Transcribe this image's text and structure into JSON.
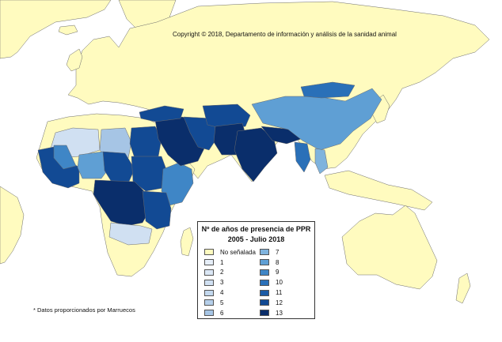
{
  "map": {
    "copyright": "Copyright © 2018, Departamento de información y análisis de la sanidad animal",
    "footnote": "* Datos proporcionados por Marruecos",
    "ocean_color": "#ffffff",
    "no_data_color": "#fffbbf",
    "border_color": "#6b6b6b"
  },
  "legend": {
    "title_line1": "Nº de años de presencia de PPR",
    "title_line2": "2005 - Julio 2018",
    "items": [
      {
        "label": "No señalada",
        "color": "#fffbbf"
      },
      {
        "label": "1",
        "color": "#e6eef8"
      },
      {
        "label": "2",
        "color": "#dbe7f5"
      },
      {
        "label": "3",
        "color": "#d0e0f2"
      },
      {
        "label": "4",
        "color": "#c3d8ee"
      },
      {
        "label": "5",
        "color": "#b5cfea"
      },
      {
        "label": "6",
        "color": "#a6c5e5"
      },
      {
        "label": "7",
        "color": "#7fb3dd"
      },
      {
        "label": "8",
        "color": "#5f9fd4"
      },
      {
        "label": "9",
        "color": "#3f86c6"
      },
      {
        "label": "10",
        "color": "#2a70b8"
      },
      {
        "label": "11",
        "color": "#1b5ba5"
      },
      {
        "label": "12",
        "color": "#124a94"
      },
      {
        "label": "13",
        "color": "#0a2e6b"
      }
    ]
  }
}
